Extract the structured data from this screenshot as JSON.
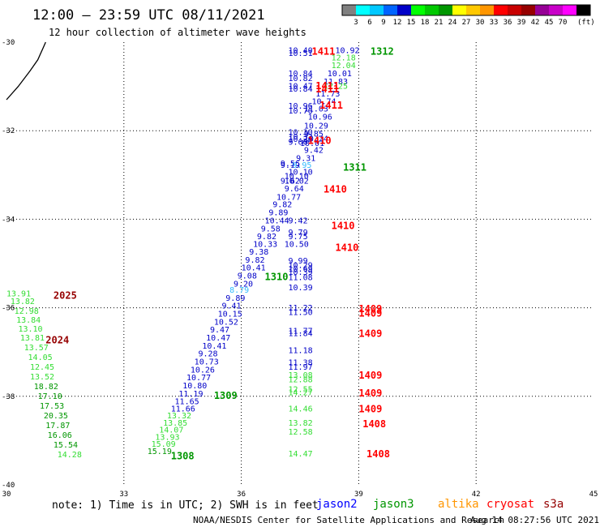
{
  "header": {
    "title": "12:00 – 23:59 UTC 08/11/2021",
    "subtitle": "12 hour collection of altimeter wave heights"
  },
  "colorbar": {
    "colors": [
      "#808080",
      "#00ffff",
      "#00c8ff",
      "#0064ff",
      "#0000c8",
      "#00ff00",
      "#00c800",
      "#009600",
      "#ffff00",
      "#ffc800",
      "#ff9600",
      "#ff0000",
      "#c80000",
      "#960000",
      "#960096",
      "#c800c8",
      "#ff00ff",
      "#000000"
    ],
    "labels": [
      "3",
      "6",
      "9",
      "12",
      "15",
      "18",
      "21",
      "24",
      "27",
      "30",
      "33",
      "36",
      "39",
      "42",
      "45",
      "70"
    ],
    "unit": "(ft)"
  },
  "chart_data": {
    "type": "scatter",
    "title": "12:00 – 23:59 UTC 08/11/2021",
    "subtitle": "12 hour collection of altimeter wave heights",
    "xlim": [
      30,
      45
    ],
    "ylim": [
      -40,
      -30
    ],
    "x_ticks": [
      "30",
      "33",
      "36",
      "39",
      "42",
      "45"
    ],
    "y_ticks": [
      "-30",
      "-32",
      "-34",
      "-36",
      "-38",
      "-40"
    ],
    "grid": true,
    "coastline": [
      [
        30.0,
        -31.3
      ],
      [
        30.3,
        -31.0
      ],
      [
        30.6,
        -30.65
      ],
      [
        30.8,
        -30.4
      ],
      [
        30.95,
        -30.1
      ],
      [
        31.0,
        -30.0
      ]
    ],
    "points": [
      {
        "x": 37.2,
        "y": -30.25,
        "v": "10.40",
        "c": "#0000c8"
      },
      {
        "x": 37.2,
        "y": -30.31,
        "v": "10.51",
        "c": "#0000c8"
      },
      {
        "x": 38.4,
        "y": -30.25,
        "v": "10.92",
        "c": "#0000c8"
      },
      {
        "x": 38.3,
        "y": -30.41,
        "v": "12.18",
        "c": "#33dd33"
      },
      {
        "x": 38.3,
        "y": -30.59,
        "v": "12.04",
        "c": "#33dd33"
      },
      {
        "x": 37.2,
        "y": -30.77,
        "v": "10.84",
        "c": "#0000c8"
      },
      {
        "x": 38.2,
        "y": -30.77,
        "v": "10.01",
        "c": "#0000c8"
      },
      {
        "x": 37.2,
        "y": -30.88,
        "v": "10.82",
        "c": "#0000c8"
      },
      {
        "x": 38.1,
        "y": -30.95,
        "v": "11.83",
        "c": "#0000c8"
      },
      {
        "x": 37.2,
        "y": -31.05,
        "v": "10.47",
        "c": "#0000c8"
      },
      {
        "x": 38.1,
        "y": -31.05,
        "v": "12.25",
        "c": "#33dd33"
      },
      {
        "x": 37.2,
        "y": -31.12,
        "v": "10.84",
        "c": "#0000c8"
      },
      {
        "x": 37.9,
        "y": -31.23,
        "v": "11.73",
        "c": "#0000c8"
      },
      {
        "x": 37.8,
        "y": -31.4,
        "v": "10.74",
        "c": "#0000c8"
      },
      {
        "x": 37.2,
        "y": -31.5,
        "v": "10.96",
        "c": "#0000c8"
      },
      {
        "x": 37.6,
        "y": -31.57,
        "v": "11.03",
        "c": "#0000c8"
      },
      {
        "x": 37.2,
        "y": -31.61,
        "v": "10.76",
        "c": "#0000c8"
      },
      {
        "x": 37.7,
        "y": -31.75,
        "v": "10.96",
        "c": "#0000c8"
      },
      {
        "x": 37.6,
        "y": -31.95,
        "v": "10.29",
        "c": "#0000c8"
      },
      {
        "x": 37.2,
        "y": -32.1,
        "v": "10.30",
        "c": "#0000c8"
      },
      {
        "x": 37.6,
        "y": -32.13,
        "v": "9.85",
        "c": "#0000c8"
      },
      {
        "x": 37.2,
        "y": -32.2,
        "v": "10.32",
        "c": "#0000c8"
      },
      {
        "x": 37.2,
        "y": -32.25,
        "v": "10.20",
        "c": "#0000c8"
      },
      {
        "x": 37.6,
        "y": -32.24,
        "v": "10.24",
        "c": "#0000c8"
      },
      {
        "x": 37.2,
        "y": -32.32,
        "v": "9.60",
        "c": "#0000c8"
      },
      {
        "x": 37.5,
        "y": -32.34,
        "v": "10.01",
        "c": "#0000c8"
      },
      {
        "x": 37.6,
        "y": -32.5,
        "v": "9.42",
        "c": "#0000c8"
      },
      {
        "x": 37.4,
        "y": -32.68,
        "v": "9.31",
        "c": "#0000c8"
      },
      {
        "x": 37.0,
        "y": -32.8,
        "v": "9.56",
        "c": "#0000c8"
      },
      {
        "x": 37.0,
        "y": -32.84,
        "v": "9.19",
        "c": "#0000c8"
      },
      {
        "x": 37.3,
        "y": -32.84,
        "v": "9.95",
        "c": "#33bbff"
      },
      {
        "x": 37.2,
        "y": -32.99,
        "v": "10.10",
        "c": "#0000c8"
      },
      {
        "x": 37.1,
        "y": -33.09,
        "v": "10.10",
        "c": "#0000c8"
      },
      {
        "x": 37.1,
        "y": -33.2,
        "v": "10.02",
        "c": "#0000c8"
      },
      {
        "x": 37.0,
        "y": -33.2,
        "v": "9.62",
        "c": "#0000c8"
      },
      {
        "x": 37.1,
        "y": -33.37,
        "v": "9.64",
        "c": "#0000c8"
      },
      {
        "x": 36.9,
        "y": -33.56,
        "v": "10.77",
        "c": "#0000c8"
      },
      {
        "x": 36.8,
        "y": -33.73,
        "v": "9.82",
        "c": "#0000c8"
      },
      {
        "x": 36.7,
        "y": -33.91,
        "v": "9.89",
        "c": "#0000c8"
      },
      {
        "x": 36.6,
        "y": -34.09,
        "v": "10.44",
        "c": "#0000c8"
      },
      {
        "x": 37.2,
        "y": -34.09,
        "v": "9.42",
        "c": "#0000c8"
      },
      {
        "x": 36.5,
        "y": -34.28,
        "v": "9.58",
        "c": "#0000c8"
      },
      {
        "x": 37.2,
        "y": -34.36,
        "v": "9.79",
        "c": "#0000c8"
      },
      {
        "x": 36.4,
        "y": -34.45,
        "v": "9.82",
        "c": "#0000c8"
      },
      {
        "x": 37.2,
        "y": -34.45,
        "v": "9.75",
        "c": "#0000c8"
      },
      {
        "x": 36.3,
        "y": -34.62,
        "v": "10.33",
        "c": "#0000c8"
      },
      {
        "x": 37.1,
        "y": -34.62,
        "v": "10.50",
        "c": "#0000c8"
      },
      {
        "x": 36.2,
        "y": -34.8,
        "v": "9.38",
        "c": "#0000c8"
      },
      {
        "x": 37.2,
        "y": -35.0,
        "v": "9.99",
        "c": "#0000c8"
      },
      {
        "x": 36.1,
        "y": -34.98,
        "v": "9.82",
        "c": "#0000c8"
      },
      {
        "x": 37.2,
        "y": -35.1,
        "v": "10.29",
        "c": "#0000c8"
      },
      {
        "x": 36.0,
        "y": -35.16,
        "v": "10.41",
        "c": "#0000c8"
      },
      {
        "x": 37.2,
        "y": -35.18,
        "v": "10.69",
        "c": "#0000c8"
      },
      {
        "x": 37.2,
        "y": -35.26,
        "v": "10.39",
        "c": "#0000c8"
      },
      {
        "x": 35.9,
        "y": -35.34,
        "v": "9.08",
        "c": "#0000c8"
      },
      {
        "x": 37.2,
        "y": -35.38,
        "v": "11.08",
        "c": "#0000c8"
      },
      {
        "x": 35.8,
        "y": -35.52,
        "v": "9.20",
        "c": "#0000c8"
      },
      {
        "x": 37.2,
        "y": -35.6,
        "v": "10.39",
        "c": "#0000c8"
      },
      {
        "x": 35.7,
        "y": -35.66,
        "v": "8.79",
        "c": "#33bbff"
      },
      {
        "x": 35.6,
        "y": -35.84,
        "v": "9.89",
        "c": "#0000c8"
      },
      {
        "x": 35.5,
        "y": -36.02,
        "v": "9.41",
        "c": "#0000c8"
      },
      {
        "x": 37.2,
        "y": -36.06,
        "v": "11.22",
        "c": "#0000c8"
      },
      {
        "x": 35.4,
        "y": -36.2,
        "v": "10.15",
        "c": "#0000c8"
      },
      {
        "x": 37.2,
        "y": -36.16,
        "v": "11.50",
        "c": "#0000c8"
      },
      {
        "x": 35.3,
        "y": -36.38,
        "v": "10.52",
        "c": "#0000c8"
      },
      {
        "x": 35.2,
        "y": -36.56,
        "v": "9.47",
        "c": "#0000c8"
      },
      {
        "x": 37.2,
        "y": -36.58,
        "v": "11.77",
        "c": "#0000c8"
      },
      {
        "x": 37.2,
        "y": -36.64,
        "v": "11.84",
        "c": "#0000c8"
      },
      {
        "x": 35.1,
        "y": -36.74,
        "v": "10.47",
        "c": "#0000c8"
      },
      {
        "x": 35.0,
        "y": -36.92,
        "v": "10.41",
        "c": "#0000c8"
      },
      {
        "x": 37.2,
        "y": -37.02,
        "v": "11.18",
        "c": "#0000c8"
      },
      {
        "x": 34.9,
        "y": -37.1,
        "v": "9.28",
        "c": "#0000c8"
      },
      {
        "x": 34.8,
        "y": -37.28,
        "v": "10.73",
        "c": "#0000c8"
      },
      {
        "x": 37.2,
        "y": -37.3,
        "v": "11.38",
        "c": "#0000c8"
      },
      {
        "x": 37.2,
        "y": -37.4,
        "v": "11.97",
        "c": "#0000c8"
      },
      {
        "x": 34.7,
        "y": -37.46,
        "v": "10.26",
        "c": "#0000c8"
      },
      {
        "x": 37.2,
        "y": -37.58,
        "v": "13.08",
        "c": "#33dd33"
      },
      {
        "x": 34.6,
        "y": -37.64,
        "v": "10.77",
        "c": "#0000c8"
      },
      {
        "x": 37.2,
        "y": -37.68,
        "v": "12.88",
        "c": "#33dd33"
      },
      {
        "x": 34.5,
        "y": -37.82,
        "v": "10.80",
        "c": "#0000c8"
      },
      {
        "x": 37.2,
        "y": -37.9,
        "v": "12.55",
        "c": "#33dd33"
      },
      {
        "x": 34.4,
        "y": -38.0,
        "v": "11.19",
        "c": "#0000c8"
      },
      {
        "x": 37.2,
        "y": -37.98,
        "v": "14.27",
        "c": "#33dd33"
      },
      {
        "x": 34.3,
        "y": -38.18,
        "v": "11.65",
        "c": "#0000c8"
      },
      {
        "x": 34.2,
        "y": -38.34,
        "v": "11.66",
        "c": "#0000c8"
      },
      {
        "x": 37.2,
        "y": -38.34,
        "v": "14.46",
        "c": "#33dd33"
      },
      {
        "x": 34.1,
        "y": -38.5,
        "v": "13.32",
        "c": "#33dd33"
      },
      {
        "x": 37.2,
        "y": -38.66,
        "v": "13.82",
        "c": "#33dd33"
      },
      {
        "x": 34.0,
        "y": -38.66,
        "v": "13.85",
        "c": "#33dd33"
      },
      {
        "x": 37.2,
        "y": -38.86,
        "v": "12.58",
        "c": "#33dd33"
      },
      {
        "x": 33.9,
        "y": -38.82,
        "v": "14.07",
        "c": "#33dd33"
      },
      {
        "x": 33.8,
        "y": -38.98,
        "v": "13.93",
        "c": "#33dd33"
      },
      {
        "x": 33.7,
        "y": -39.14,
        "v": "15.09",
        "c": "#33dd33"
      },
      {
        "x": 37.2,
        "y": -39.36,
        "v": "14.47",
        "c": "#33dd33"
      },
      {
        "x": 33.6,
        "y": -39.3,
        "v": "15.19",
        "c": "#009600"
      },
      {
        "x": 30.0,
        "y": -35.74,
        "v": "13.91",
        "c": "#33dd33"
      },
      {
        "x": 30.1,
        "y": -35.92,
        "v": "13.82",
        "c": "#33dd33"
      },
      {
        "x": 30.2,
        "y": -36.14,
        "v": "12.98",
        "c": "#33dd33"
      },
      {
        "x": 30.25,
        "y": -36.34,
        "v": "13.84",
        "c": "#33dd33"
      },
      {
        "x": 30.3,
        "y": -36.54,
        "v": "13.10",
        "c": "#33dd33"
      },
      {
        "x": 30.35,
        "y": -36.74,
        "v": "13.81",
        "c": "#33dd33"
      },
      {
        "x": 30.45,
        "y": -36.96,
        "v": "13.57",
        "c": "#33dd33"
      },
      {
        "x": 30.55,
        "y": -37.18,
        "v": "14.05",
        "c": "#33dd33"
      },
      {
        "x": 30.6,
        "y": -37.4,
        "v": "12.45",
        "c": "#33dd33"
      },
      {
        "x": 30.6,
        "y": -37.62,
        "v": "13.52",
        "c": "#33dd33"
      },
      {
        "x": 30.7,
        "y": -37.84,
        "v": "18.82",
        "c": "#009600"
      },
      {
        "x": 30.8,
        "y": -38.06,
        "v": "17.10",
        "c": "#009600"
      },
      {
        "x": 30.85,
        "y": -38.28,
        "v": "17.53",
        "c": "#009600"
      },
      {
        "x": 30.95,
        "y": -38.5,
        "v": "20.35",
        "c": "#009600"
      },
      {
        "x": 31.0,
        "y": -38.72,
        "v": "17.87",
        "c": "#009600"
      },
      {
        "x": 31.05,
        "y": -38.94,
        "v": "16.06",
        "c": "#009600"
      },
      {
        "x": 31.2,
        "y": -39.16,
        "v": "15.54",
        "c": "#009600"
      },
      {
        "x": 31.3,
        "y": -39.38,
        "v": "14.28",
        "c": "#33dd33"
      }
    ],
    "time_labels": [
      {
        "x": 37.8,
        "y": -30.28,
        "t": "1411",
        "c": "#ff0000"
      },
      {
        "x": 39.3,
        "y": -30.28,
        "t": "1312",
        "c": "#009600"
      },
      {
        "x": 37.9,
        "y": -31.06,
        "t": "1411",
        "c": "#ff0000"
      },
      {
        "x": 37.9,
        "y": -31.14,
        "t": "1411",
        "c": "#ff0000"
      },
      {
        "x": 38.0,
        "y": -31.5,
        "t": "1411",
        "c": "#ff0000"
      },
      {
        "x": 37.7,
        "y": -32.3,
        "t": "1410",
        "c": "#ff0000"
      },
      {
        "x": 38.6,
        "y": -32.9,
        "t": "1311",
        "c": "#009600"
      },
      {
        "x": 38.1,
        "y": -33.4,
        "t": "1410",
        "c": "#ff0000"
      },
      {
        "x": 38.3,
        "y": -34.22,
        "t": "1410",
        "c": "#ff0000"
      },
      {
        "x": 38.4,
        "y": -34.72,
        "t": "1410",
        "c": "#ff0000"
      },
      {
        "x": 36.6,
        "y": -35.38,
        "t": "1310",
        "c": "#009600"
      },
      {
        "x": 39.0,
        "y": -36.1,
        "t": "1409",
        "c": "#ff0000"
      },
      {
        "x": 39.0,
        "y": -36.2,
        "t": "1409",
        "c": "#ff0000"
      },
      {
        "x": 39.0,
        "y": -36.66,
        "t": "1409",
        "c": "#ff0000"
      },
      {
        "x": 39.0,
        "y": -37.6,
        "t": "1409",
        "c": "#ff0000"
      },
      {
        "x": 39.0,
        "y": -38.0,
        "t": "1409",
        "c": "#ff0000"
      },
      {
        "x": 39.0,
        "y": -38.36,
        "t": "1409",
        "c": "#ff0000"
      },
      {
        "x": 39.1,
        "y": -38.7,
        "t": "1408",
        "c": "#ff0000"
      },
      {
        "x": 39.2,
        "y": -39.38,
        "t": "1408",
        "c": "#ff0000"
      },
      {
        "x": 35.3,
        "y": -38.06,
        "t": "1309",
        "c": "#009600"
      },
      {
        "x": 34.2,
        "y": -39.42,
        "t": "1308",
        "c": "#009600"
      },
      {
        "x": 31.2,
        "y": -35.8,
        "t": "2025",
        "c": "#960000"
      },
      {
        "x": 31.0,
        "y": -36.8,
        "t": "2024",
        "c": "#960000"
      }
    ]
  },
  "footer": {
    "note": "note: 1) Time is in UTC; 2) SWH is in feet",
    "satellites": [
      {
        "name": "jason2",
        "color": "#0000ff"
      },
      {
        "name": "jason3",
        "color": "#009600"
      },
      {
        "name": "altika",
        "color": "#ff9600"
      },
      {
        "name": "cryosat",
        "color": "#ff0000"
      },
      {
        "name": "s3a",
        "color": "#960000"
      }
    ],
    "credit": "NOAA/NESDIS Center for Satellite Applications and Research",
    "timestamp": "Aug 14 08:27:56 UTC 2021"
  }
}
